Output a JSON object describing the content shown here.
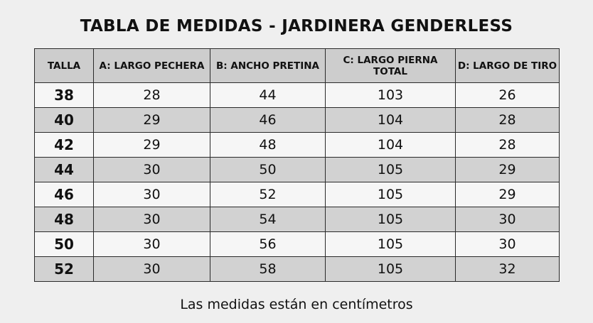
{
  "title": "TABLA DE MEDIDAS - JARDINERA GENDERLESS",
  "table": {
    "header": [
      "TALLA",
      "A: LARGO PECHERA",
      "B: ANCHO PRETINA",
      "C: LARGO PIERNA TOTAL",
      "D: LARGO DE TIRO"
    ],
    "rows": [
      [
        38,
        28,
        44,
        103,
        26
      ],
      [
        40,
        29,
        46,
        104,
        28
      ],
      [
        42,
        29,
        48,
        104,
        28
      ],
      [
        44,
        30,
        50,
        105,
        29
      ],
      [
        46,
        30,
        52,
        105,
        29
      ],
      [
        48,
        30,
        54,
        105,
        30
      ],
      [
        50,
        30,
        56,
        105,
        30
      ],
      [
        52,
        30,
        58,
        105,
        32
      ]
    ]
  },
  "footnote": "Las medidas están en centímetros"
}
